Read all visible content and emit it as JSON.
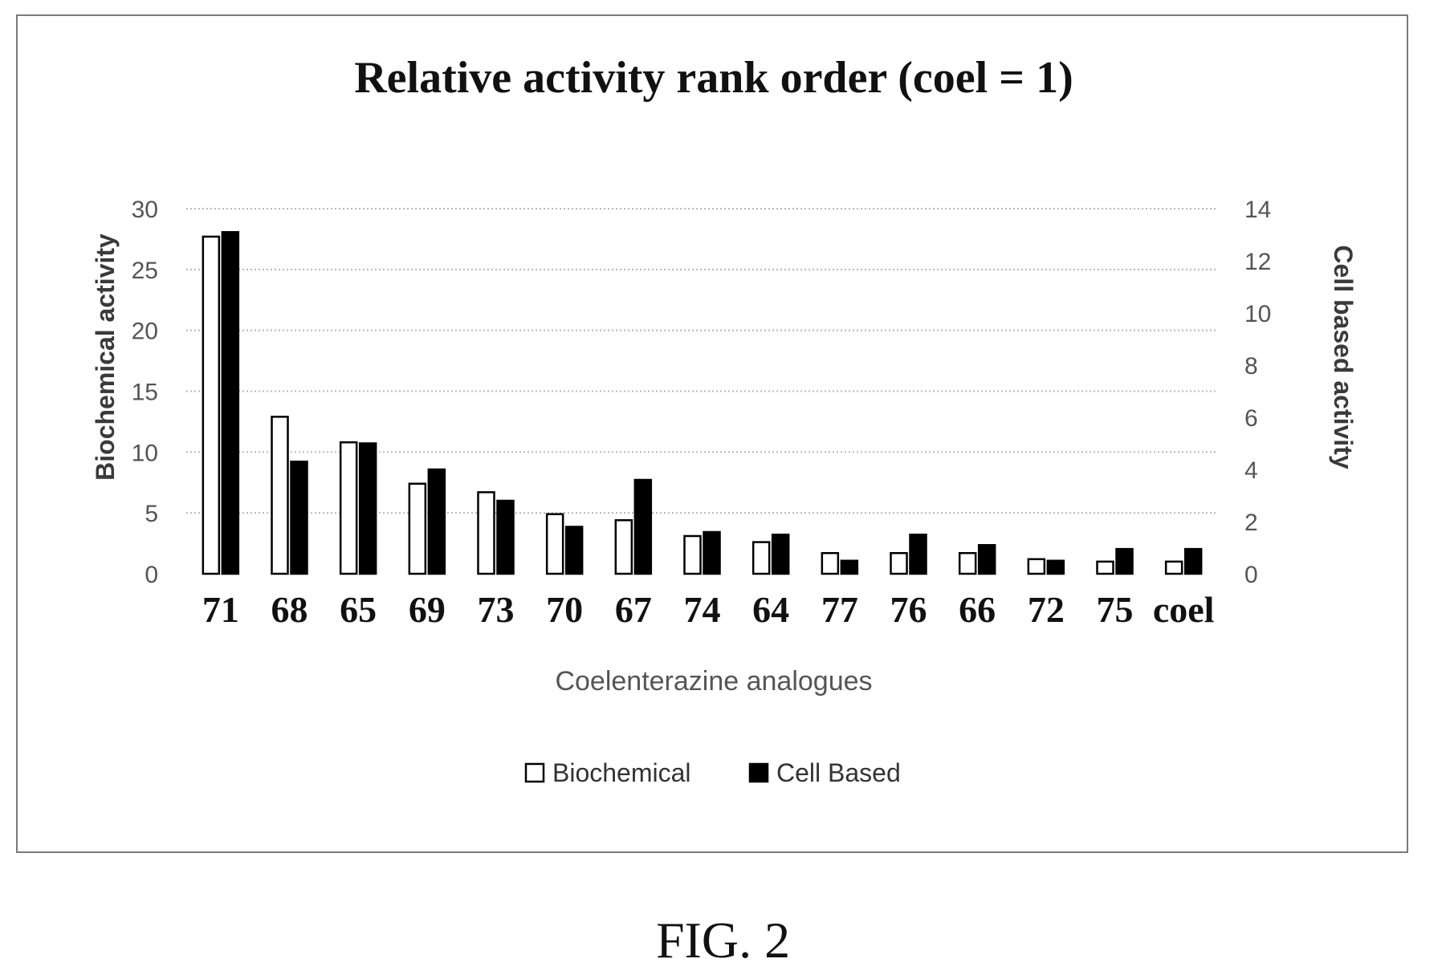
{
  "figure": {
    "caption": "FIG. 2"
  },
  "chart_data": {
    "type": "bar",
    "title": "Relative activity rank order (coel = 1)",
    "xlabel": "Coelenterazine analogues",
    "ylabel": "Biochemical activity",
    "y2label": "Cell based activity",
    "ylim": [
      0,
      30
    ],
    "y2lim": [
      0,
      14
    ],
    "yticks": [
      0,
      5,
      10,
      15,
      20,
      25,
      30
    ],
    "y2ticks": [
      0,
      2,
      4,
      6,
      8,
      10,
      12,
      14
    ],
    "grid": true,
    "legend_position": "bottom",
    "categories": [
      "71",
      "68",
      "65",
      "69",
      "73",
      "70",
      "67",
      "74",
      "64",
      "77",
      "76",
      "66",
      "72",
      "75",
      "coel"
    ],
    "series": [
      {
        "name": "Biochemical",
        "axis": "left",
        "color": "#ffffff",
        "values": [
          27.7,
          12.9,
          10.8,
          7.4,
          6.7,
          4.9,
          4.4,
          3.1,
          2.6,
          1.7,
          1.7,
          1.7,
          1.2,
          1.0,
          1.0
        ]
      },
      {
        "name": "Cell Based",
        "axis": "right",
        "color": "#000000",
        "values": [
          13.1,
          4.3,
          5.0,
          4.0,
          2.8,
          1.8,
          3.6,
          1.6,
          1.5,
          0.5,
          1.5,
          1.1,
          0.5,
          0.95,
          0.95
        ]
      }
    ]
  }
}
